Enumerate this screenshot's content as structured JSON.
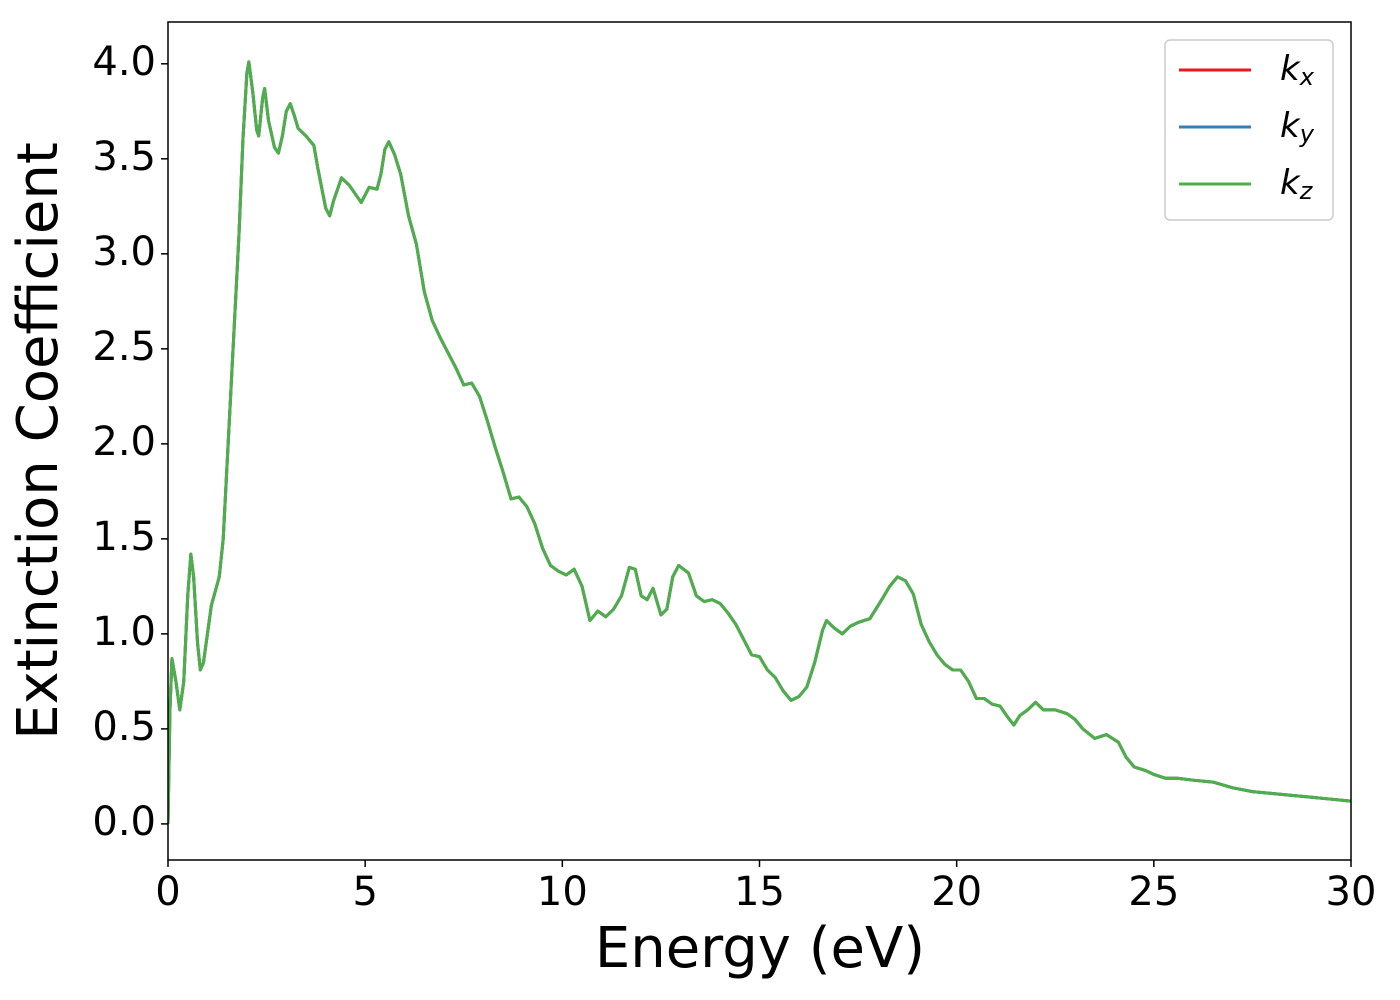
{
  "chart_data": {
    "type": "line",
    "xlabel": "Energy (eV)",
    "ylabel": "Extinction Coefficient",
    "x": [
      0,
      0.05,
      0.1,
      0.2,
      0.3,
      0.4,
      0.5,
      0.58,
      0.65,
      0.75,
      0.82,
      0.9,
      1.0,
      1.1,
      1.3,
      1.4,
      1.6,
      1.8,
      1.9,
      2.0,
      2.05,
      2.15,
      2.25,
      2.3,
      2.4,
      2.45,
      2.55,
      2.7,
      2.8,
      2.9,
      3.0,
      3.1,
      3.2,
      3.3,
      3.5,
      3.7,
      3.8,
      4.0,
      4.1,
      4.2,
      4.4,
      4.6,
      4.8,
      4.9,
      5.1,
      5.3,
      5.4,
      5.5,
      5.6,
      5.75,
      5.9,
      6.1,
      6.3,
      6.5,
      6.7,
      6.9,
      7.1,
      7.3,
      7.5,
      7.7,
      7.9,
      8.1,
      8.3,
      8.5,
      8.7,
      8.9,
      9.1,
      9.3,
      9.5,
      9.7,
      9.9,
      10.1,
      10.3,
      10.5,
      10.7,
      10.9,
      11.1,
      11.3,
      11.5,
      11.7,
      11.85,
      12.0,
      12.15,
      12.3,
      12.5,
      12.65,
      12.8,
      12.95,
      13.2,
      13.4,
      13.6,
      13.8,
      14.0,
      14.2,
      14.4,
      14.6,
      14.8,
      15.0,
      15.2,
      15.4,
      15.6,
      15.8,
      16.0,
      16.2,
      16.4,
      16.6,
      16.7,
      16.9,
      17.1,
      17.3,
      17.5,
      17.8,
      18.1,
      18.3,
      18.5,
      18.7,
      18.9,
      19.1,
      19.3,
      19.5,
      19.7,
      19.9,
      20.1,
      20.3,
      20.5,
      20.7,
      20.9,
      21.1,
      21.3,
      21.45,
      21.6,
      21.8,
      22.0,
      22.2,
      22.5,
      22.8,
      23.0,
      23.2,
      23.5,
      23.8,
      24.1,
      24.3,
      24.5,
      24.8,
      25.0,
      25.3,
      25.6,
      26.0,
      26.5,
      27.0,
      27.5,
      28.0,
      28.5,
      29.0,
      29.5,
      30
    ],
    "series": [
      {
        "name": "kx",
        "color": "#e41a1c",
        "values": [
          0,
          0.6,
          0.87,
          0.75,
          0.6,
          0.75,
          1.2,
          1.42,
          1.3,
          0.95,
          0.81,
          0.85,
          1.0,
          1.15,
          1.3,
          1.5,
          2.3,
          3.1,
          3.6,
          3.95,
          4.01,
          3.85,
          3.65,
          3.62,
          3.82,
          3.87,
          3.7,
          3.56,
          3.53,
          3.62,
          3.75,
          3.79,
          3.73,
          3.66,
          3.62,
          3.57,
          3.45,
          3.24,
          3.2,
          3.28,
          3.4,
          3.36,
          3.3,
          3.27,
          3.35,
          3.34,
          3.42,
          3.55,
          3.59,
          3.52,
          3.42,
          3.2,
          3.05,
          2.8,
          2.65,
          2.56,
          2.48,
          2.4,
          2.31,
          2.32,
          2.25,
          2.12,
          1.98,
          1.85,
          1.71,
          1.72,
          1.67,
          1.58,
          1.45,
          1.36,
          1.33,
          1.31,
          1.34,
          1.25,
          1.07,
          1.12,
          1.09,
          1.13,
          1.2,
          1.35,
          1.34,
          1.2,
          1.18,
          1.24,
          1.1,
          1.13,
          1.3,
          1.36,
          1.32,
          1.2,
          1.17,
          1.18,
          1.16,
          1.11,
          1.05,
          0.97,
          0.89,
          0.88,
          0.81,
          0.77,
          0.7,
          0.65,
          0.67,
          0.72,
          0.85,
          1.02,
          1.07,
          1.03,
          1.0,
          1.04,
          1.06,
          1.08,
          1.18,
          1.25,
          1.3,
          1.28,
          1.21,
          1.05,
          0.96,
          0.89,
          0.84,
          0.81,
          0.81,
          0.75,
          0.66,
          0.66,
          0.63,
          0.62,
          0.56,
          0.52,
          0.57,
          0.6,
          0.64,
          0.6,
          0.6,
          0.58,
          0.55,
          0.5,
          0.45,
          0.47,
          0.43,
          0.35,
          0.3,
          0.28,
          0.26,
          0.24,
          0.24,
          0.23,
          0.22,
          0.19,
          0.17,
          0.16,
          0.15,
          0.14,
          0.13,
          0.12
        ]
      },
      {
        "name": "ky",
        "color": "#377eb8",
        "values": [
          0,
          0.6,
          0.87,
          0.75,
          0.6,
          0.75,
          1.2,
          1.42,
          1.3,
          0.95,
          0.81,
          0.85,
          1.0,
          1.15,
          1.3,
          1.5,
          2.3,
          3.1,
          3.6,
          3.95,
          4.01,
          3.85,
          3.65,
          3.62,
          3.82,
          3.87,
          3.7,
          3.56,
          3.53,
          3.62,
          3.75,
          3.79,
          3.73,
          3.66,
          3.62,
          3.57,
          3.45,
          3.24,
          3.2,
          3.28,
          3.4,
          3.36,
          3.3,
          3.27,
          3.35,
          3.34,
          3.42,
          3.55,
          3.59,
          3.52,
          3.42,
          3.2,
          3.05,
          2.8,
          2.65,
          2.56,
          2.48,
          2.4,
          2.31,
          2.32,
          2.25,
          2.12,
          1.98,
          1.85,
          1.71,
          1.72,
          1.67,
          1.58,
          1.45,
          1.36,
          1.33,
          1.31,
          1.34,
          1.25,
          1.07,
          1.12,
          1.09,
          1.13,
          1.2,
          1.35,
          1.34,
          1.2,
          1.18,
          1.24,
          1.1,
          1.13,
          1.3,
          1.36,
          1.32,
          1.2,
          1.17,
          1.18,
          1.16,
          1.11,
          1.05,
          0.97,
          0.89,
          0.88,
          0.81,
          0.77,
          0.7,
          0.65,
          0.67,
          0.72,
          0.85,
          1.02,
          1.07,
          1.03,
          1.0,
          1.04,
          1.06,
          1.08,
          1.18,
          1.25,
          1.3,
          1.28,
          1.21,
          1.05,
          0.96,
          0.89,
          0.84,
          0.81,
          0.81,
          0.75,
          0.66,
          0.66,
          0.63,
          0.62,
          0.56,
          0.52,
          0.57,
          0.6,
          0.64,
          0.6,
          0.6,
          0.58,
          0.55,
          0.5,
          0.45,
          0.47,
          0.43,
          0.35,
          0.3,
          0.28,
          0.26,
          0.24,
          0.24,
          0.23,
          0.22,
          0.19,
          0.17,
          0.16,
          0.15,
          0.14,
          0.13,
          0.12
        ]
      },
      {
        "name": "kz",
        "color": "#4daf4a",
        "values": [
          0,
          0.6,
          0.87,
          0.75,
          0.6,
          0.75,
          1.2,
          1.42,
          1.3,
          0.95,
          0.81,
          0.85,
          1.0,
          1.15,
          1.3,
          1.5,
          2.3,
          3.1,
          3.6,
          3.95,
          4.01,
          3.85,
          3.65,
          3.62,
          3.82,
          3.87,
          3.7,
          3.56,
          3.53,
          3.62,
          3.75,
          3.79,
          3.73,
          3.66,
          3.62,
          3.57,
          3.45,
          3.24,
          3.2,
          3.28,
          3.4,
          3.36,
          3.3,
          3.27,
          3.35,
          3.34,
          3.42,
          3.55,
          3.59,
          3.52,
          3.42,
          3.2,
          3.05,
          2.8,
          2.65,
          2.56,
          2.48,
          2.4,
          2.31,
          2.32,
          2.25,
          2.12,
          1.98,
          1.85,
          1.71,
          1.72,
          1.67,
          1.58,
          1.45,
          1.36,
          1.33,
          1.31,
          1.34,
          1.25,
          1.07,
          1.12,
          1.09,
          1.13,
          1.2,
          1.35,
          1.34,
          1.2,
          1.18,
          1.24,
          1.1,
          1.13,
          1.3,
          1.36,
          1.32,
          1.2,
          1.17,
          1.18,
          1.16,
          1.11,
          1.05,
          0.97,
          0.89,
          0.88,
          0.81,
          0.77,
          0.7,
          0.65,
          0.67,
          0.72,
          0.85,
          1.02,
          1.07,
          1.03,
          1.0,
          1.04,
          1.06,
          1.08,
          1.18,
          1.25,
          1.3,
          1.28,
          1.21,
          1.05,
          0.96,
          0.89,
          0.84,
          0.81,
          0.81,
          0.75,
          0.66,
          0.66,
          0.63,
          0.62,
          0.56,
          0.52,
          0.57,
          0.6,
          0.64,
          0.6,
          0.6,
          0.58,
          0.55,
          0.5,
          0.45,
          0.47,
          0.43,
          0.35,
          0.3,
          0.28,
          0.26,
          0.24,
          0.24,
          0.23,
          0.22,
          0.19,
          0.17,
          0.16,
          0.15,
          0.14,
          0.13,
          0.12
        ]
      }
    ],
    "xlim": [
      0,
      30
    ],
    "xticks": [
      0,
      5,
      10,
      15,
      20,
      25,
      30
    ],
    "ylim": [
      -0.19,
      4.22
    ],
    "yticks": [
      {
        "value": 0,
        "label": "0.0"
      },
      {
        "value": 0.5,
        "label": "0.5"
      },
      {
        "value": 1,
        "label": "1.0"
      },
      {
        "value": 1.5,
        "label": "1.5"
      },
      {
        "value": 2,
        "label": "2.0"
      },
      {
        "value": 2.5,
        "label": "2.5"
      },
      {
        "value": 3,
        "label": "3.0"
      },
      {
        "value": 3.5,
        "label": "3.5"
      },
      {
        "value": 4,
        "label": "4.0"
      }
    ],
    "grid": false,
    "legend": "upper right"
  }
}
